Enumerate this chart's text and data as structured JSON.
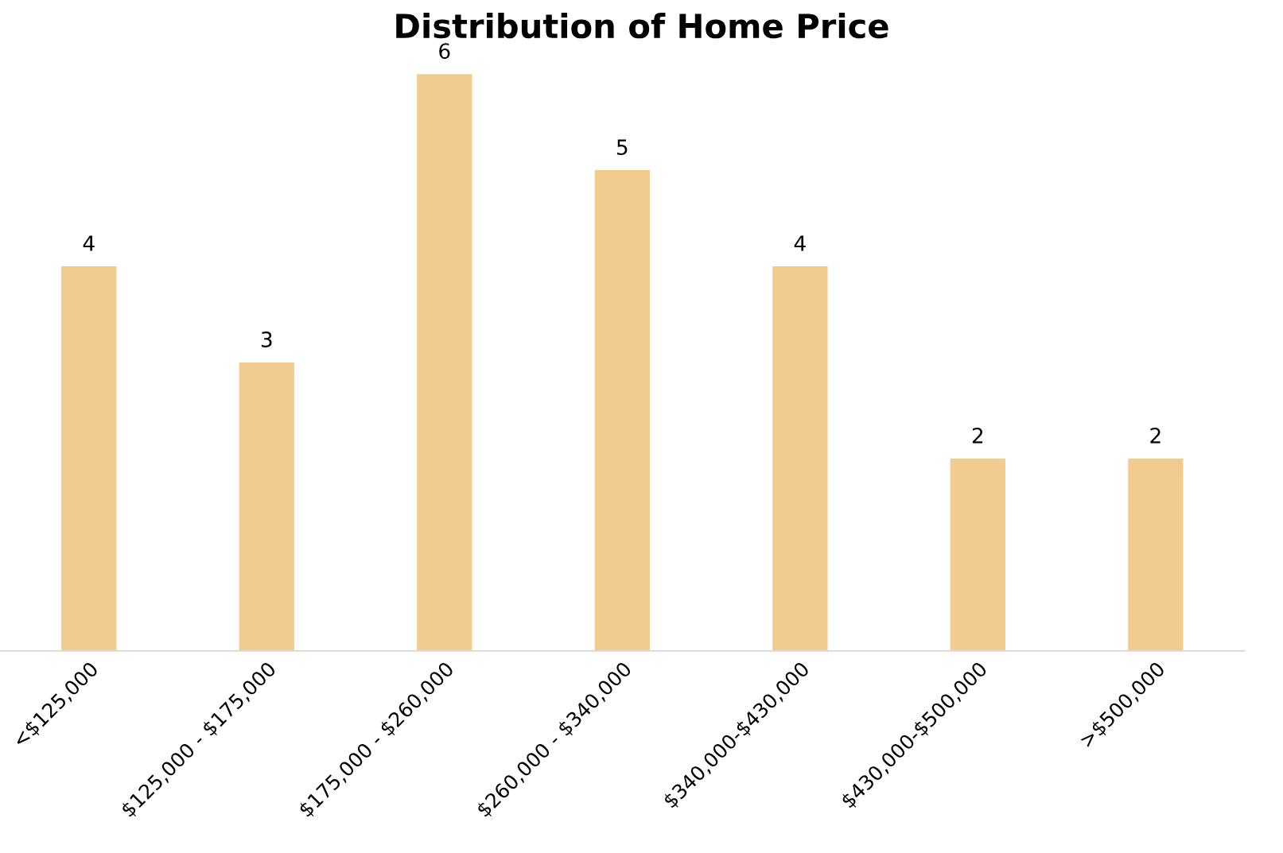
{
  "chart_data": {
    "type": "bar",
    "title": "Distribution of Home Price",
    "categories": [
      "<$125,000",
      "$125,000 - $175,000",
      "$175,000 - $260,000",
      "$260,000 - $340,000",
      "$340,000-$430,000",
      "$430,000-$500,000",
      ">$500,000"
    ],
    "values": [
      4,
      3,
      6,
      5,
      4,
      2,
      2
    ],
    "data_labels": true,
    "tick_labels": "x",
    "color": "#f2cc8f",
    "grid": false
  }
}
